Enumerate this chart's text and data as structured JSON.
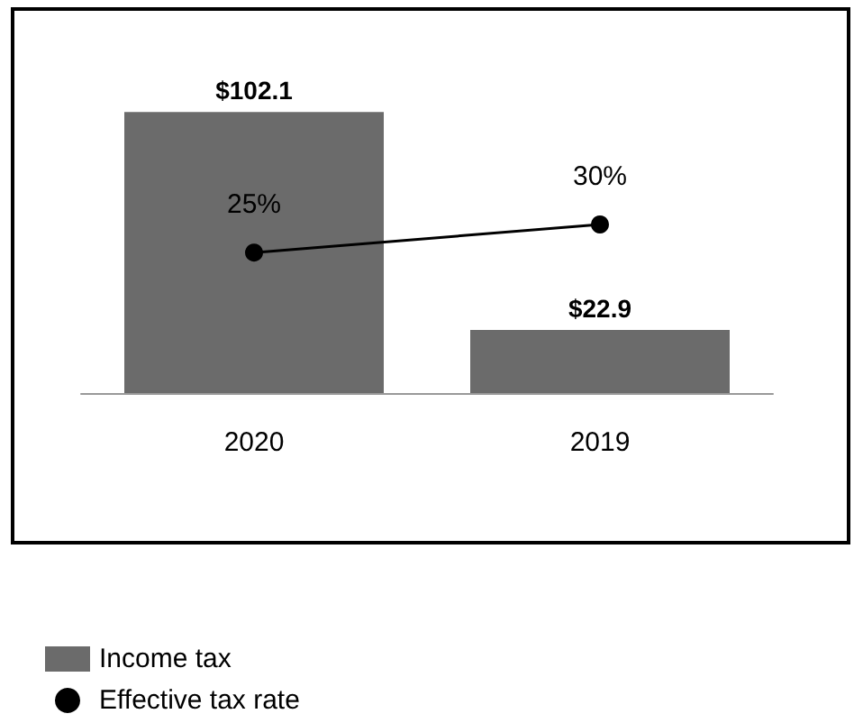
{
  "chart_data": {
    "type": "bar",
    "categories": [
      "2020",
      "2019"
    ],
    "series": [
      {
        "name": "Income tax",
        "color": "#6b6b6b",
        "values": [
          102.1,
          22.9
        ],
        "value_labels": [
          "$102.1",
          "$22.9"
        ]
      },
      {
        "name": "Effective tax rate",
        "type": "line",
        "axis": "y2",
        "color": "#000000",
        "values": [
          25,
          30
        ],
        "value_labels": [
          "25%",
          "30%"
        ],
        "marker": "circle"
      }
    ],
    "tick_labels": "x",
    "legend": "bottom"
  }
}
